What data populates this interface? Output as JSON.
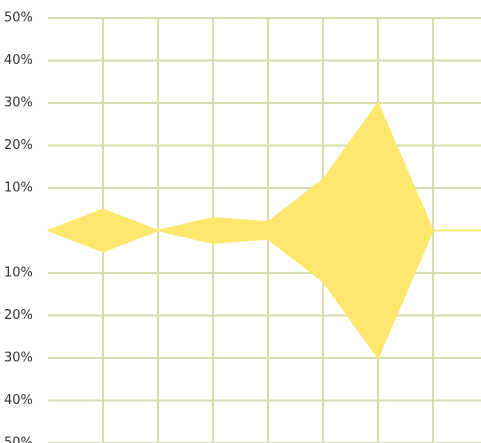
{
  "chart_data": {
    "type": "area",
    "x": [
      0,
      1,
      2,
      3,
      4,
      5,
      6,
      7,
      8
    ],
    "series": [
      {
        "name": null,
        "color": "#ffe66d",
        "values": [
          0,
          5,
          0,
          3,
          2,
          12,
          30,
          0,
          0
        ]
      },
      {
        "name": null,
        "color": "#ffe66d",
        "values": [
          0,
          -5,
          0,
          -3,
          -2,
          -12,
          -30,
          0,
          0
        ]
      }
    ],
    "xlim": [
      0,
      8
    ],
    "xticks": [
      1,
      2,
      3,
      4,
      5,
      6,
      7
    ],
    "ylim": [
      -50,
      50
    ],
    "yticks": [
      {
        "value": 50,
        "label": "50%"
      },
      {
        "value": 40,
        "label": "40%"
      },
      {
        "value": 30,
        "label": "30%"
      },
      {
        "value": 20,
        "label": "20%"
      },
      {
        "value": 10,
        "label": "10%"
      },
      {
        "value": -10,
        "label": "10%"
      },
      {
        "value": -20,
        "label": "20%"
      },
      {
        "value": -30,
        "label": "30%"
      },
      {
        "value": -40,
        "label": "40%"
      },
      {
        "value": -50,
        "label": "50%"
      }
    ],
    "grid": true,
    "grid_color": "#d6dcaa"
  }
}
